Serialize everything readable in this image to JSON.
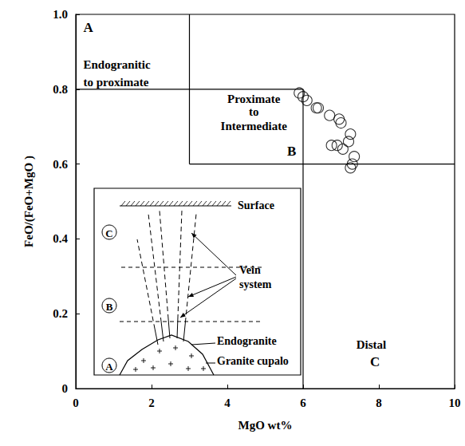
{
  "chart_data": {
    "type": "scatter",
    "xlabel": "MgO wt%",
    "ylabel": "FeO/(FeO+MgO )",
    "xlim": [
      0,
      10
    ],
    "xticks": [
      0,
      2,
      4,
      6,
      8,
      10
    ],
    "ylim": [
      0,
      1
    ],
    "yticks": [
      0,
      0.2,
      0.4,
      0.6,
      0.8,
      {
        "value": 1,
        "label": "1.0"
      }
    ],
    "grid": false,
    "marker": "open_circle",
    "color": "#000000",
    "x": [
      5.9,
      6.0,
      6.1,
      6.35,
      6.4,
      6.7,
      6.95,
      7.0,
      7.25,
      7.2,
      6.75,
      6.9,
      7.05,
      7.35,
      7.3,
      7.25
    ],
    "values": [
      0.79,
      0.78,
      0.77,
      0.75,
      0.75,
      0.73,
      0.72,
      0.71,
      0.68,
      0.66,
      0.65,
      0.65,
      0.64,
      0.62,
      0.6,
      0.59
    ],
    "boundaries": [
      {
        "x": [
          3,
          3
        ],
        "y": [
          0.6,
          1
        ]
      },
      {
        "x": [
          0,
          6
        ],
        "y": [
          0.8,
          0.8
        ]
      },
      {
        "x": [
          3,
          10
        ],
        "y": [
          0.6,
          0.6
        ]
      },
      {
        "x": [
          6,
          6
        ],
        "y": [
          0,
          0.8
        ]
      }
    ],
    "regions": [
      {
        "letter": "A",
        "lines": [
          "Endogranitic",
          "to proximate"
        ]
      },
      {
        "letter": "B",
        "lines": [
          "Proximate",
          "to",
          "Intermediate"
        ]
      },
      {
        "letter": "C",
        "lines": [
          "Distal"
        ]
      }
    ],
    "inset": {
      "surface": "Surface",
      "zones": [
        "C",
        "B",
        "A"
      ],
      "veins": [
        "Vein",
        "system"
      ],
      "endogranite": "Endogranite",
      "cupola": "Granite cupalo"
    }
  }
}
